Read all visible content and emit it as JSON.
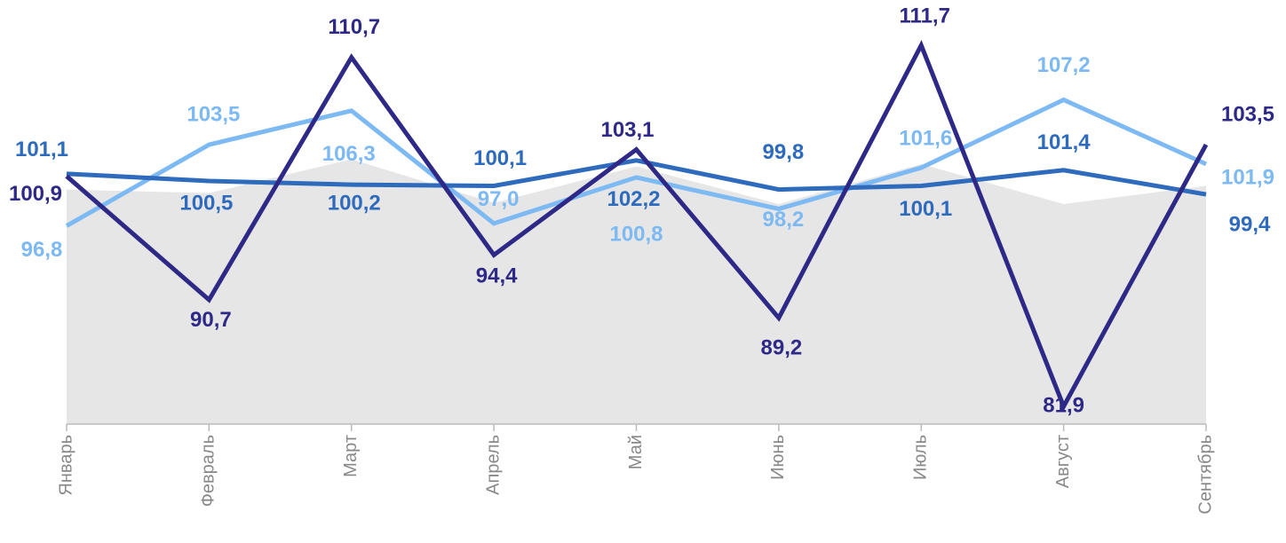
{
  "chart_data": {
    "type": "line",
    "categories": [
      "Январь",
      "Февраль",
      "Март",
      "Апрель",
      "Май",
      "Июнь",
      "Июль",
      "Август",
      "Сентябрь"
    ],
    "ylim": [
      80,
      115
    ],
    "series": [
      {
        "color": "#e6e6e6",
        "area": true,
        "values": [
          99.8,
          99.5,
          102.3,
          98.7,
          101.7,
          98.6,
          101.9,
          98.6,
          100.1
        ]
      },
      {
        "color": "#7db9f2",
        "values": [
          96.8,
          103.5,
          106.3,
          97.0,
          100.8,
          98.2,
          101.6,
          107.2,
          101.9
        ],
        "value_labels": [
          "96,8",
          "103,5",
          "106,3",
          "97,0",
          "100,8",
          "98,2",
          "101,6",
          "107,2",
          "101,9"
        ]
      },
      {
        "color": "#2e6bbd",
        "values": [
          101.1,
          100.5,
          100.2,
          100.1,
          102.2,
          99.8,
          100.1,
          101.4,
          99.4
        ],
        "value_labels": [
          "101,1",
          "100,5",
          "100,2",
          "100,1",
          "102,2",
          "99,8",
          "100,1",
          "101,4",
          "99,4"
        ]
      },
      {
        "color": "#2e2987",
        "values": [
          100.9,
          90.7,
          110.7,
          94.4,
          103.1,
          89.2,
          111.7,
          81.9,
          103.5
        ],
        "value_labels": [
          "100,9",
          "90,7",
          "110,7",
          "94,4",
          "103,1",
          "89,2",
          "111,7",
          "81,9",
          "103,5"
        ]
      }
    ]
  }
}
